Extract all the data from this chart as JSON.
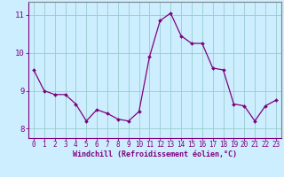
{
  "x": [
    0,
    1,
    2,
    3,
    4,
    5,
    6,
    7,
    8,
    9,
    10,
    11,
    12,
    13,
    14,
    15,
    16,
    17,
    18,
    19,
    20,
    21,
    22,
    23
  ],
  "y": [
    9.55,
    9.0,
    8.9,
    8.9,
    8.65,
    8.2,
    8.5,
    8.4,
    8.25,
    8.2,
    8.45,
    9.9,
    10.85,
    11.05,
    10.45,
    10.25,
    10.25,
    9.6,
    9.55,
    8.65,
    8.6,
    8.2,
    8.6,
    8.75
  ],
  "line_color": "#800080",
  "marker": "D",
  "marker_size": 2.0,
  "bg_color": "#cceeff",
  "grid_color": "#99cccc",
  "xlabel": "Windchill (Refroidissement éolien,°C)",
  "ylim": [
    7.75,
    11.35
  ],
  "xlim": [
    -0.5,
    23.5
  ],
  "yticks": [
    8,
    9,
    10,
    11
  ],
  "xticks": [
    0,
    1,
    2,
    3,
    4,
    5,
    6,
    7,
    8,
    9,
    10,
    11,
    12,
    13,
    14,
    15,
    16,
    17,
    18,
    19,
    20,
    21,
    22,
    23
  ],
  "tick_label_color": "#800080",
  "spine_color": "#808080",
  "axis_spine_color": "#800080",
  "xlabel_fontsize": 6.0,
  "ytick_fontsize": 6.5,
  "xtick_fontsize": 5.5
}
